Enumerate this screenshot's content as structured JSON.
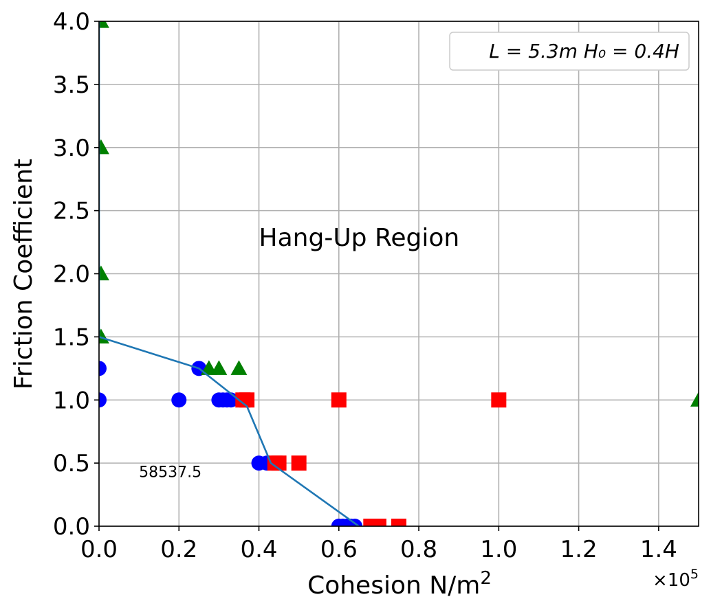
{
  "chart_data": {
    "type": "scatter",
    "xlabel": "Cohesion N/m",
    "xlabel_superscript": "2",
    "ylabel": "Friction Coefficient",
    "x_offset_label": "×10",
    "x_offset_exponent": "5",
    "xlim": [
      0,
      150000
    ],
    "ylim": [
      0,
      4.0
    ],
    "x_ticks": [
      0,
      20000,
      40000,
      60000,
      80000,
      100000,
      120000,
      140000
    ],
    "x_tick_labels": [
      "0.0",
      "0.2",
      "0.4",
      "0.6",
      "0.8",
      "1.0",
      "1.2",
      "1.4"
    ],
    "y_ticks": [
      0,
      0.5,
      1.0,
      1.5,
      2.0,
      2.5,
      3.0,
      3.5,
      4.0
    ],
    "y_tick_labels": [
      "0.0",
      "0.5",
      "1.0",
      "1.5",
      "2.0",
      "2.5",
      "3.0",
      "3.5",
      "4.0"
    ],
    "grid": true,
    "legend": {
      "placement": "top-right",
      "text": "L = 5.3m  H₀ = 0.4H"
    },
    "annotations": [
      {
        "text": "Hang-Up Region",
        "x": 40000,
        "y": 2.22,
        "size": "large"
      },
      {
        "text": "58537.5",
        "x": 10000,
        "y": 0.39,
        "size": "small"
      }
    ],
    "series": [
      {
        "marker": "circle",
        "color": "#0000ff",
        "points": [
          [
            0,
            1.25
          ],
          [
            0,
            1.0
          ],
          [
            20000,
            1.0
          ],
          [
            25000,
            1.25
          ],
          [
            30000,
            1.0
          ],
          [
            31000,
            1.0
          ],
          [
            32000,
            1.0
          ],
          [
            33000,
            1.0
          ],
          [
            40000,
            0.5
          ],
          [
            42000,
            0.5
          ],
          [
            60000,
            0.0
          ],
          [
            61000,
            0.0
          ],
          [
            62000,
            0.0
          ],
          [
            63000,
            0.0
          ],
          [
            64000,
            0.0
          ]
        ]
      },
      {
        "marker": "square",
        "color": "#ff0000",
        "points": [
          [
            36000,
            1.0
          ],
          [
            37000,
            1.0
          ],
          [
            60000,
            1.0
          ],
          [
            100000,
            1.0
          ],
          [
            44000,
            0.5
          ],
          [
            45000,
            0.5
          ],
          [
            50000,
            0.5
          ],
          [
            68000,
            0.0
          ],
          [
            70000,
            0.0
          ],
          [
            75000,
            0.0
          ]
        ]
      },
      {
        "marker": "triangle",
        "color": "#008000",
        "points": [
          [
            500,
            4.0
          ],
          [
            500,
            3.0
          ],
          [
            500,
            2.0
          ],
          [
            500,
            1.5
          ],
          [
            27500,
            1.25
          ],
          [
            30000,
            1.25
          ],
          [
            35000,
            1.25
          ],
          [
            150000,
            1.0
          ]
        ]
      },
      {
        "marker": "line",
        "color": "#1f77b4",
        "points": [
          [
            0,
            4.0
          ],
          [
            0,
            1.5
          ],
          [
            25000,
            1.25
          ],
          [
            35000,
            1.0
          ],
          [
            37000,
            0.95
          ],
          [
            43000,
            0.5
          ],
          [
            65000,
            0.0
          ]
        ]
      }
    ]
  }
}
